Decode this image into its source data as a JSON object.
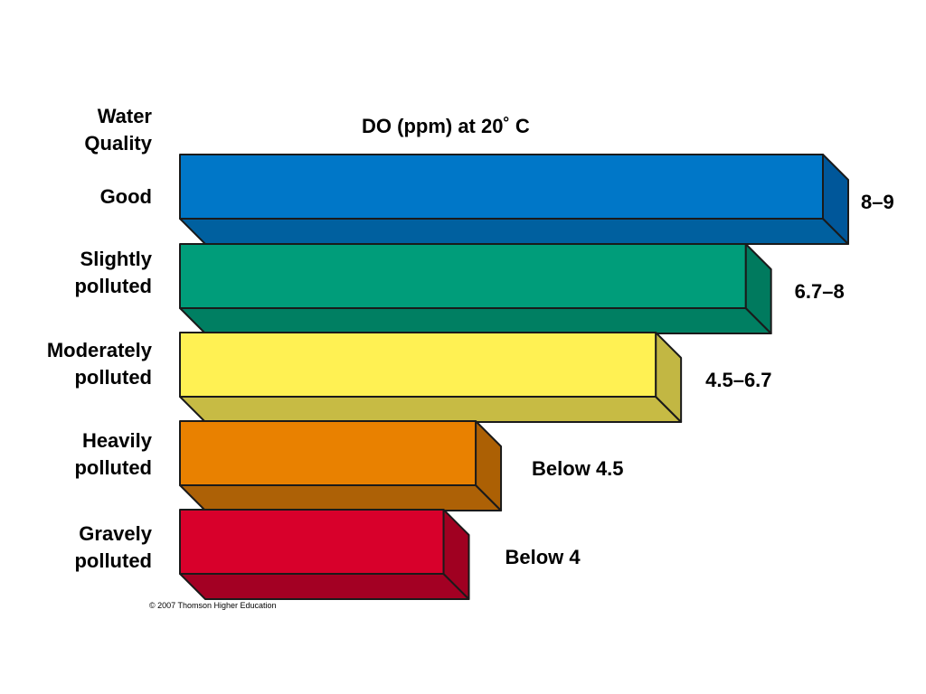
{
  "chart_data": {
    "type": "bar",
    "orientation": "horizontal",
    "title": "DO (ppm) at 20˚ C",
    "ylabel_lines": [
      "Water",
      "Quality"
    ],
    "categories": [
      {
        "lines": [
          "Good"
        ]
      },
      {
        "lines": [
          "Slightly",
          "polluted"
        ]
      },
      {
        "lines": [
          "Moderately",
          "polluted"
        ]
      },
      {
        "lines": [
          "Heavily",
          "polluted"
        ]
      },
      {
        "lines": [
          "Gravely",
          "polluted"
        ]
      }
    ],
    "value_labels": [
      "8–9",
      "6.7–8",
      "4.5–6.7",
      "Below 4.5",
      "Below 4"
    ],
    "relative_lengths": [
      1.0,
      0.88,
      0.74,
      0.46,
      0.41
    ],
    "colors": [
      {
        "front": "#0077c8",
        "side": "#00579a",
        "bottom": "#00609f"
      },
      {
        "front": "#009d7a",
        "side": "#007a5e",
        "bottom": "#007f62"
      },
      {
        "front": "#fff153",
        "side": "#c2b743",
        "bottom": "#c7bb44"
      },
      {
        "front": "#e98100",
        "side": "#ac6004",
        "bottom": "#ad6106"
      },
      {
        "front": "#d8002b",
        "side": "#a00021",
        "bottom": "#a30023"
      }
    ],
    "grid": false,
    "legend": "none"
  },
  "copyright": "© 2007 Thomson Higher Education"
}
